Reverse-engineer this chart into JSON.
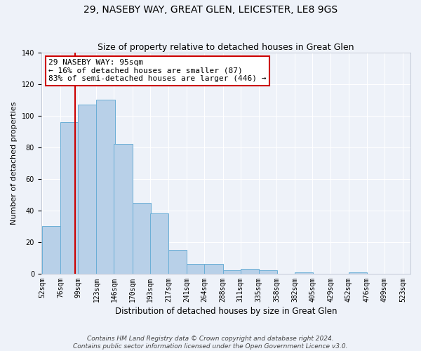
{
  "title": "29, NASEBY WAY, GREAT GLEN, LEICESTER, LE8 9GS",
  "subtitle": "Size of property relative to detached houses in Great Glen",
  "xlabel": "Distribution of detached houses by size in Great Glen",
  "ylabel": "Number of detached properties",
  "bar_values": [
    30,
    96,
    107,
    110,
    82,
    45,
    38,
    15,
    6,
    6,
    2,
    3,
    2,
    0,
    1,
    0,
    0,
    1
  ],
  "bin_edges": [
    52,
    76,
    99,
    123,
    146,
    170,
    193,
    217,
    241,
    264,
    288,
    311,
    335,
    358,
    382,
    405,
    429,
    452,
    476
  ],
  "all_tick_positions": [
    52,
    76,
    99,
    123,
    146,
    170,
    193,
    217,
    241,
    264,
    288,
    311,
    335,
    358,
    382,
    405,
    429,
    452,
    476,
    499,
    523
  ],
  "all_tick_labels": [
    "52sqm",
    "76sqm",
    "99sqm",
    "123sqm",
    "146sqm",
    "170sqm",
    "193sqm",
    "217sqm",
    "241sqm",
    "264sqm",
    "288sqm",
    "311sqm",
    "335sqm",
    "358sqm",
    "382sqm",
    "405sqm",
    "429sqm",
    "452sqm",
    "476sqm",
    "499sqm",
    "523sqm"
  ],
  "bar_color": "#b8d0e8",
  "bar_edge_color": "#6aaed6",
  "vline_x": 95,
  "vline_color": "#cc0000",
  "ylim": [
    0,
    140
  ],
  "yticks": [
    0,
    20,
    40,
    60,
    80,
    100,
    120,
    140
  ],
  "annotation_title": "29 NASEBY WAY: 95sqm",
  "annotation_line1": "← 16% of detached houses are smaller (87)",
  "annotation_line2": "83% of semi-detached houses are larger (446) →",
  "annotation_box_facecolor": "#ffffff",
  "annotation_box_edgecolor": "#cc0000",
  "footer_line1": "Contains HM Land Registry data © Crown copyright and database right 2024.",
  "footer_line2": "Contains public sector information licensed under the Open Government Licence v3.0.",
  "background_color": "#eef2f9",
  "grid_color": "#ffffff",
  "title_fontsize": 10,
  "subtitle_fontsize": 9,
  "axis_label_fontsize": 8.5,
  "tick_fontsize": 7,
  "footer_fontsize": 6.5,
  "annotation_fontsize": 8,
  "ylabel_fontsize": 8
}
